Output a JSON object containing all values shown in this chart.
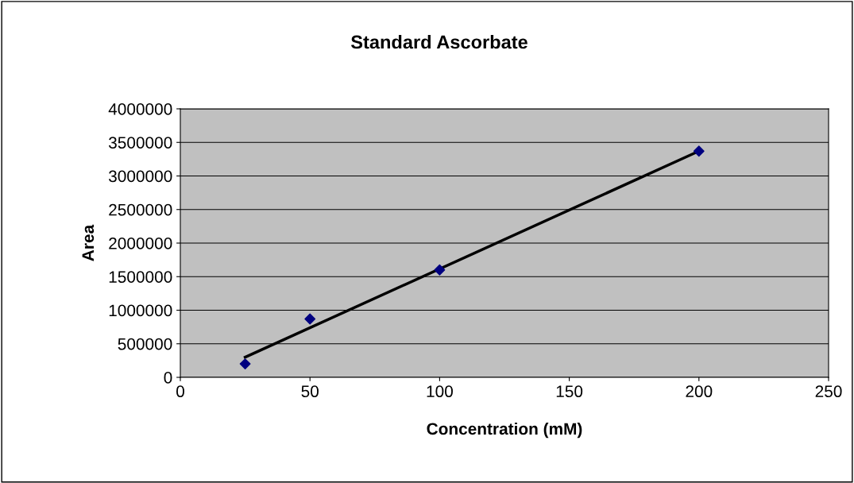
{
  "chart_data": {
    "type": "scatter",
    "title": "Standard Ascorbate",
    "xlabel": "Concentration (mM)",
    "ylabel": "Area",
    "series": [
      {
        "color": "#000080",
        "marker": "diamond",
        "x": [
          25,
          50,
          100,
          200
        ],
        "values": [
          200000,
          870000,
          1600000,
          3370000
        ]
      },
      {
        "type": "line",
        "color": "#000000",
        "marker": "none",
        "line_style": "solid",
        "x": [
          25,
          200
        ],
        "values": [
          300000,
          3370000
        ]
      }
    ],
    "xlim": [
      0,
      250
    ],
    "xticks": [
      0,
      50,
      100,
      150,
      200,
      250
    ],
    "ylim": [
      0,
      4000000
    ],
    "yticks": [
      0,
      500000,
      1000000,
      1500000,
      2000000,
      2500000,
      3000000,
      3500000,
      4000000
    ],
    "grid": "y"
  }
}
